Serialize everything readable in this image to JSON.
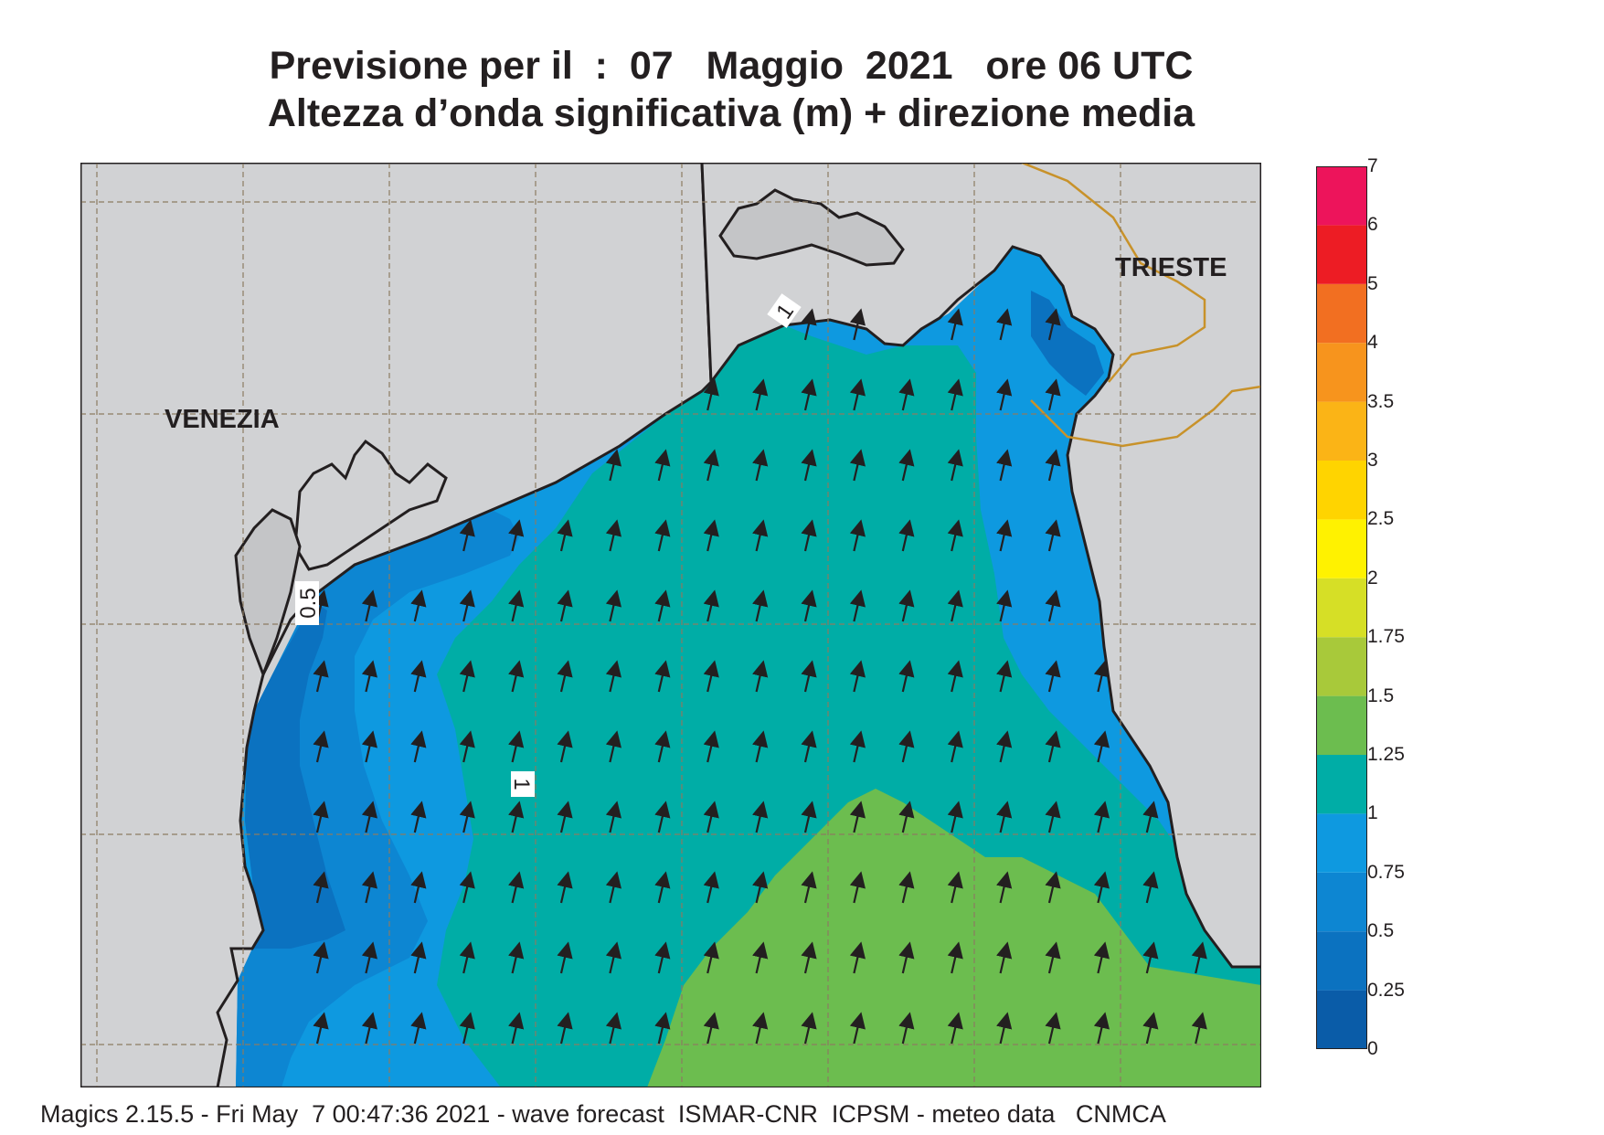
{
  "header": {
    "line1": "Previsione per il  :  07   Maggio  2021   ore 06 UTC",
    "line2": "Altezza d’onda significativa (m) + direzione media"
  },
  "map": {
    "cities": [
      {
        "name": "VENEZIA"
      },
      {
        "name": "TRIESTE"
      }
    ],
    "contour_labels": [
      "1",
      "0.5",
      "1"
    ],
    "land_color": "#d1d2d4",
    "coast_color": "#231f20",
    "border_color": "#c8922a",
    "wave_direction": "north-northeast"
  },
  "legend": {
    "title": "",
    "levels": [
      "0",
      "0.25",
      "0.5",
      "0.75",
      "1",
      "1.25",
      "1.5",
      "1.75",
      "2",
      "2.5",
      "3",
      "3.5",
      "4",
      "5",
      "6",
      "7"
    ],
    "colors": [
      "#0a5ca8",
      "#0b72c0",
      "#0d86d2",
      "#0e99e0",
      "#00ada6",
      "#6cbd4f",
      "#a8c93a",
      "#d6df26",
      "#fff200",
      "#ffd400",
      "#fbb416",
      "#f7941d",
      "#f26f21",
      "#ed1c24",
      "#ed145b"
    ]
  },
  "footer": {
    "text": "Magics 2.15.5 - Fri May  7 00:47:36 2021 - wave forecast  ISMAR-CNR  ICPSM - meteo data   CNMCA"
  }
}
